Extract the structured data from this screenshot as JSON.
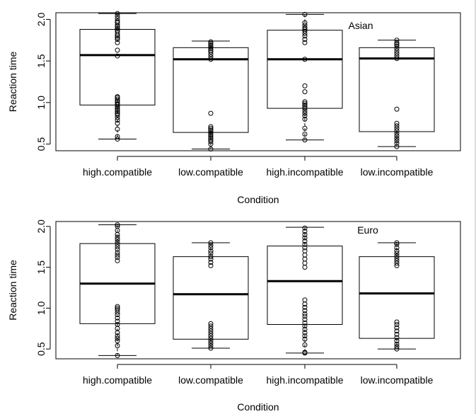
{
  "chart_data": [
    {
      "type": "boxplot",
      "title": "Asian",
      "xlabel": "Condition",
      "ylabel": "Reaction time",
      "categories": [
        "high.compatible",
        "low.compatible",
        "high.incompatible",
        "low.incompatible"
      ],
      "ylim": [
        0.42,
        2.08
      ],
      "yticks": [
        0.5,
        1.0,
        1.5,
        2.0
      ],
      "ytick_labels": [
        "0.5",
        "1.0",
        "1.5",
        "2.0"
      ],
      "boxes": [
        {
          "whisker_low": 0.56,
          "q1": 0.97,
          "median": 1.57,
          "q3": 1.88,
          "whisker_high": 2.07
        },
        {
          "whisker_low": 0.44,
          "q1": 0.64,
          "median": 1.52,
          "q3": 1.66,
          "whisker_high": 1.74
        },
        {
          "whisker_low": 0.55,
          "q1": 0.93,
          "median": 1.52,
          "q3": 1.87,
          "whisker_high": 2.06
        },
        {
          "whisker_low": 0.47,
          "q1": 0.65,
          "median": 1.53,
          "q3": 1.66,
          "whisker_high": 1.75
        }
      ],
      "points": [
        [
          0.56,
          0.59,
          0.68,
          0.75,
          0.79,
          0.82,
          0.85,
          0.87,
          0.89,
          0.91,
          0.93,
          0.95,
          0.97,
          0.98,
          1.0,
          1.02,
          1.04,
          1.06,
          1.07,
          1.56,
          1.63,
          1.72,
          1.76,
          1.78,
          1.8,
          1.82,
          1.85,
          1.87,
          1.89,
          1.91,
          1.93,
          1.96,
          1.98,
          2.01,
          2.04,
          2.07
        ],
        [
          0.44,
          0.5,
          0.53,
          0.55,
          0.57,
          0.59,
          0.61,
          0.63,
          0.65,
          0.67,
          0.69,
          0.71,
          0.87,
          1.52,
          1.55,
          1.58,
          1.61,
          1.63,
          1.65,
          1.67,
          1.69,
          1.71,
          1.73
        ],
        [
          0.55,
          0.62,
          0.69,
          0.8,
          0.84,
          0.87,
          0.9,
          0.93,
          0.95,
          0.97,
          0.99,
          1.01,
          1.13,
          1.2,
          1.52,
          1.72,
          1.76,
          1.8,
          1.83,
          1.86,
          1.88,
          1.9,
          1.93,
          1.96,
          2.06
        ],
        [
          0.47,
          0.51,
          0.54,
          0.57,
          0.6,
          0.63,
          0.66,
          0.69,
          0.72,
          0.75,
          0.92,
          1.53,
          1.56,
          1.59,
          1.62,
          1.65,
          1.68,
          1.7,
          1.72,
          1.75
        ]
      ]
    },
    {
      "type": "boxplot",
      "title": "Euro",
      "xlabel": "Condition",
      "ylabel": "Reaction time",
      "categories": [
        "high.compatible",
        "low.compatible",
        "high.incompatible",
        "low.incompatible"
      ],
      "ylim": [
        0.38,
        2.06
      ],
      "yticks": [
        0.5,
        1.0,
        1.5,
        2.0
      ],
      "ytick_labels": [
        "0.5",
        "1.0",
        "1.5",
        "2.0"
      ],
      "boxes": [
        {
          "whisker_low": 0.42,
          "q1": 0.81,
          "median": 1.3,
          "q3": 1.79,
          "whisker_high": 2.02
        },
        {
          "whisker_low": 0.51,
          "q1": 0.62,
          "median": 1.17,
          "q3": 1.63,
          "whisker_high": 1.8
        },
        {
          "whisker_low": 0.45,
          "q1": 0.8,
          "median": 1.33,
          "q3": 1.76,
          "whisker_high": 1.99
        },
        {
          "whisker_low": 0.5,
          "q1": 0.63,
          "median": 1.18,
          "q3": 1.63,
          "whisker_high": 1.8
        }
      ],
      "points": [
        [
          0.42,
          0.54,
          0.6,
          0.63,
          0.66,
          0.7,
          0.75,
          0.8,
          0.84,
          0.88,
          0.92,
          0.95,
          0.98,
          1.0,
          1.02,
          1.58,
          1.62,
          1.65,
          1.68,
          1.72,
          1.75,
          1.78,
          1.81,
          1.84,
          1.87,
          1.9,
          1.95,
          2.0,
          2.02
        ],
        [
          0.51,
          0.54,
          0.57,
          0.6,
          0.63,
          0.66,
          0.69,
          0.72,
          0.75,
          0.78,
          0.81,
          1.52,
          1.56,
          1.6,
          1.63,
          1.67,
          1.7,
          1.74,
          1.77,
          1.8
        ],
        [
          0.45,
          0.46,
          0.55,
          0.62,
          0.66,
          0.7,
          0.74,
          0.78,
          0.82,
          0.86,
          0.9,
          0.93,
          0.97,
          1.01,
          1.05,
          1.1,
          1.5,
          1.55,
          1.6,
          1.65,
          1.7,
          1.74,
          1.78,
          1.82,
          1.86,
          1.9,
          1.94,
          1.98
        ],
        [
          0.5,
          0.53,
          0.56,
          0.6,
          0.64,
          0.68,
          0.72,
          0.76,
          0.8,
          0.83,
          1.52,
          1.55,
          1.58,
          1.61,
          1.64,
          1.67,
          1.7,
          1.74,
          1.78,
          1.8
        ]
      ]
    }
  ]
}
